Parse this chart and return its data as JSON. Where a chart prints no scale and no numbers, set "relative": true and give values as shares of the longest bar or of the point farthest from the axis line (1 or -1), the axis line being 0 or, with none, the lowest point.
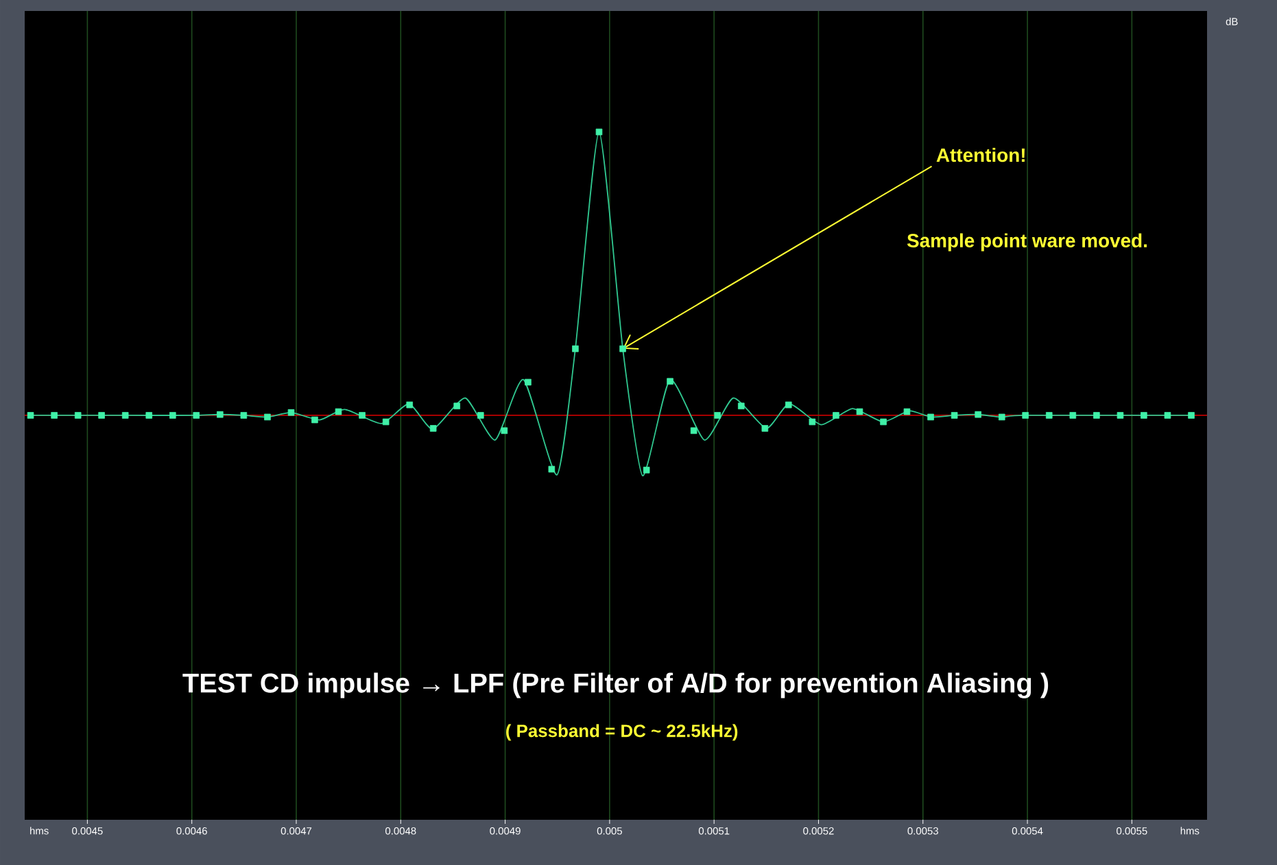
{
  "chart_data": {
    "type": "line",
    "xlabel": "hms",
    "relative": true,
    "xlim": [
      0.00444,
      0.005572
    ],
    "xticks": [
      0.0045,
      0.0046,
      0.0047,
      0.0048,
      0.0049,
      0.005,
      0.0051,
      0.0052,
      0.0053,
      0.0054,
      0.0055
    ],
    "grid": "x",
    "series": [
      {
        "color": "#30c890",
        "x": [
          0.0044456,
          0.0045363,
          0.0046043,
          0.004627,
          0.0046497,
          0.0046724,
          0.0046951,
          0.0047224,
          0.0047464,
          0.0047816,
          0.0048079,
          0.0048307,
          0.0048618,
          0.0048904,
          0.0049175,
          0.0049496,
          0.0049672,
          0.0049899,
          0.0050126,
          0.0050316,
          0.0050579,
          0.0050908,
          0.0051184,
          0.00515,
          0.005172,
          0.0052026,
          0.0052325,
          0.0052618,
          0.0052868,
          0.0053079,
          0.0053301,
          0.0053528,
          0.0053755,
          0.0053981,
          0.0055569
        ],
        "values": [
          0,
          0,
          0,
          0.003,
          0,
          -0.006,
          0.01,
          -0.016,
          0.021,
          -0.029,
          0.041,
          -0.049,
          0.061,
          -0.087,
          0.126,
          -0.21,
          0.235,
          1,
          0.235,
          -0.213,
          0.126,
          -0.087,
          0.061,
          -0.046,
          0.041,
          -0.033,
          0.024,
          -0.023,
          0.016,
          -0.006,
          0,
          0.003,
          -0.006,
          0,
          0
        ]
      },
      {
        "type": "scatter",
        "color": "#40f0a8",
        "marker": "square",
        "x": [
          0.0044456,
          0.0044683,
          0.004491,
          0.0045136,
          0.0045363,
          0.004559,
          0.0045817,
          0.0046043,
          0.004627,
          0.0046497,
          0.0046724,
          0.0046951,
          0.0047177,
          0.0047404,
          0.0047631,
          0.0047858,
          0.0048085,
          0.0048311,
          0.0048538,
          0.0048765,
          0.0048992,
          0.0049219,
          0.0049445,
          0.0049672,
          0.0049899,
          0.0050126,
          0.0050353,
          0.0050579,
          0.0050806,
          0.0051033,
          0.005126,
          0.0051487,
          0.0051713,
          0.005194,
          0.0052167,
          0.0052394,
          0.0052621,
          0.0052847,
          0.0053074,
          0.0053301,
          0.0053528,
          0.0053755,
          0.0053981,
          0.0054208,
          0.0054435,
          0.0054662,
          0.0054889,
          0.0055115,
          0.0055342,
          0.0055569
        ],
        "values": [
          0,
          0,
          0,
          0,
          0,
          0,
          0,
          0,
          0.003,
          0,
          -0.006,
          0.01,
          -0.016,
          0.013,
          0,
          -0.023,
          0.037,
          -0.046,
          0.033,
          0,
          -0.054,
          0.117,
          -0.19,
          0.235,
          1,
          0.235,
          -0.193,
          0.12,
          -0.054,
          0,
          0.033,
          -0.046,
          0.037,
          -0.023,
          0,
          0.013,
          -0.023,
          0.013,
          -0.006,
          0,
          0.003,
          -0.006,
          0,
          0,
          0,
          0,
          0,
          0,
          0,
          0
        ]
      }
    ],
    "ref_lines": [
      {
        "axis": "y",
        "value": 0,
        "color": "#c00000"
      }
    ],
    "annotations": [
      {
        "text": "Attention!",
        "x": 0.0050126,
        "y": 0.235
      },
      "Sample point ware moved.",
      "TEST CD impulse → LPF (Pre Filter of A/D for prevention Aliasing )",
      "( Passband = DC ~ 22.5kHz)",
      "dB"
    ]
  }
}
